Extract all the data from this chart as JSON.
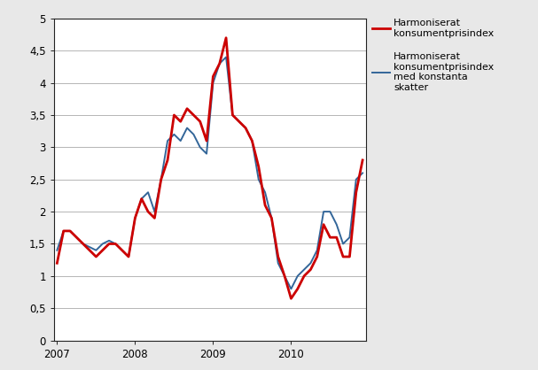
{
  "red_label": "Harmoniserat\nkonsumentprisindex",
  "blue_label": "Harmoniserat\nkonsumentprisindex\nmed konstanta\nskatter",
  "red_color": "#cc0000",
  "blue_color": "#336699",
  "ylim": [
    0,
    5
  ],
  "yticks": [
    0,
    0.5,
    1.0,
    1.5,
    2.0,
    2.5,
    3.0,
    3.5,
    4.0,
    4.5,
    5.0
  ],
  "ytick_labels": [
    "0",
    "0,5",
    "1",
    "1,5",
    "2",
    "2,5",
    "3",
    "3,5",
    "4",
    "4,5",
    "5"
  ],
  "xtick_positions": [
    0,
    12,
    24,
    36
  ],
  "xtick_labels": [
    "2007",
    "2008",
    "2009",
    "2010"
  ],
  "red_values": [
    1.2,
    1.7,
    1.7,
    1.6,
    1.5,
    1.4,
    1.3,
    1.4,
    1.5,
    1.5,
    1.4,
    1.3,
    1.9,
    2.2,
    2.0,
    1.9,
    2.5,
    2.8,
    3.5,
    3.4,
    3.6,
    3.5,
    3.4,
    3.1,
    4.1,
    4.3,
    4.7,
    3.5,
    3.4,
    3.3,
    3.1,
    2.7,
    2.1,
    1.9,
    1.3,
    1.0,
    0.65,
    0.8,
    1.0,
    1.1,
    1.3,
    1.8,
    1.6,
    1.6,
    1.3,
    1.3,
    2.3,
    2.8
  ],
  "blue_values": [
    1.4,
    1.7,
    1.7,
    1.6,
    1.5,
    1.45,
    1.4,
    1.5,
    1.55,
    1.5,
    1.4,
    1.3,
    1.9,
    2.2,
    2.3,
    2.0,
    2.5,
    3.1,
    3.2,
    3.1,
    3.3,
    3.2,
    3.0,
    2.9,
    4.0,
    4.3,
    4.4,
    3.5,
    3.4,
    3.3,
    3.1,
    2.5,
    2.3,
    1.9,
    1.2,
    1.0,
    0.8,
    1.0,
    1.1,
    1.2,
    1.4,
    2.0,
    2.0,
    1.8,
    1.5,
    1.6,
    2.5,
    2.6
  ],
  "linewidth_red": 2.0,
  "linewidth_blue": 1.4,
  "figure_bg": "#e8e8e8",
  "plot_bg": "#ffffff",
  "grid_color": "#aaaaaa",
  "font_size": 8.5
}
